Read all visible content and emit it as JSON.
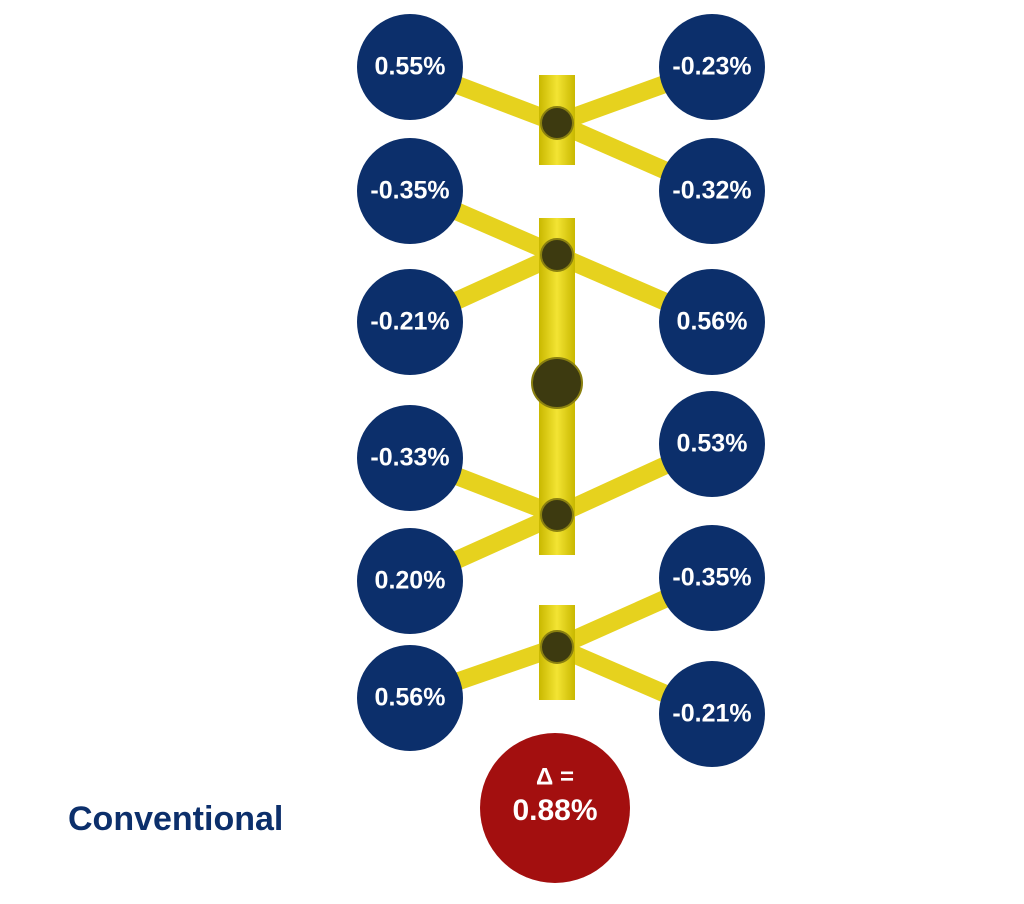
{
  "nodes": [
    {
      "label": "0.55%"
    },
    {
      "label": "-0.35%"
    },
    {
      "label": "-0.21%"
    },
    {
      "label": "-0.33%"
    },
    {
      "label": "0.20%"
    },
    {
      "label": "0.56%"
    },
    {
      "label": "-0.23%"
    },
    {
      "label": "-0.32%"
    },
    {
      "label": "0.56%"
    },
    {
      "label": "0.53%"
    },
    {
      "label": "-0.35%"
    },
    {
      "label": "-0.21%"
    }
  ],
  "delta": {
    "symbol": "Δ =",
    "value": "0.88%"
  },
  "caption": "Conventional"
}
